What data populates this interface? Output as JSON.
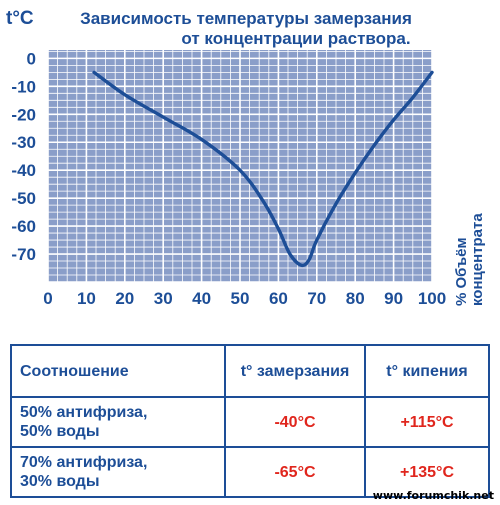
{
  "chart_data": {
    "type": "line",
    "title_lines": [
      "Зависимость температуры замерзания",
      "от концентрации раствора."
    ],
    "ylabel": "t°C",
    "xlabel_lines": [
      "% Объём",
      "концентрата"
    ],
    "x_ticks": [
      "0",
      "10",
      "20",
      "30",
      "40",
      "50",
      "60",
      "70",
      "80",
      "90",
      "100"
    ],
    "y_ticks": [
      "0",
      "-10",
      "-20",
      "-30",
      "-40",
      "-50",
      "-60",
      "-70"
    ],
    "xlim": [
      0,
      100
    ],
    "ylim": [
      -80,
      3
    ],
    "grid": true,
    "series": [
      {
        "x": [
          12,
          20,
          30,
          40,
          50,
          56,
          60,
          63,
          66,
          68,
          70,
          75,
          80,
          85,
          90,
          95,
          100
        ],
        "y": [
          -5,
          -13,
          -21,
          -29,
          -40,
          -51,
          -61,
          -70,
          -74,
          -72,
          -65,
          -52,
          -41,
          -31,
          -22,
          -14,
          -5
        ]
      }
    ]
  },
  "table": {
    "headers": [
      "Соотношение",
      "t° замерзания",
      "t° кипения"
    ],
    "rows": [
      {
        "ratio": "50% антифриза,\n50% воды",
        "freeze": "-40°C",
        "boil": "+115°C"
      },
      {
        "ratio": "70% антифриза,\n30% воды",
        "freeze": "-65°C",
        "boil": "+135°C"
      }
    ]
  },
  "watermark": "www.forumchik.net",
  "colors": {
    "primary": "#1d4e97",
    "grid_fill": "#8a9ec9",
    "grid_line": "#ffffff",
    "accent_red": "#e0261d"
  }
}
